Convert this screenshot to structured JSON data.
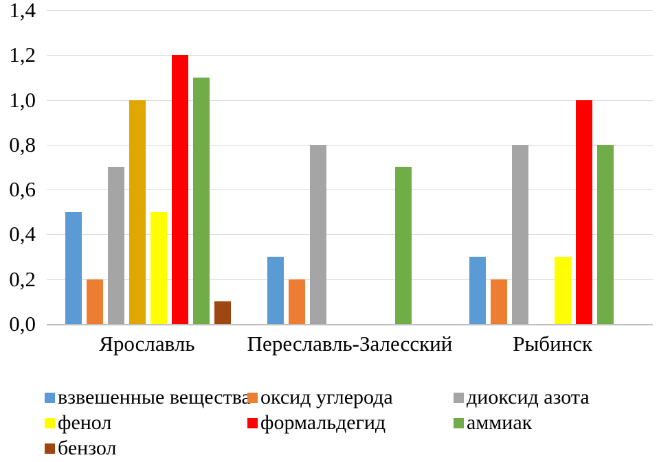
{
  "chart_data": {
    "type": "bar",
    "title": "",
    "categories": [
      "Ярославль",
      "Переславль-Залесский",
      "Рыбинск"
    ],
    "series": [
      {
        "key": "suspended-solids",
        "name": "взвешенные вещества",
        "color": "#5B9BD5",
        "values": [
          0.5,
          0.3,
          0.3
        ]
      },
      {
        "key": "carbon-monoxide",
        "name": "оксид углерода",
        "color": "#ED7D31",
        "values": [
          0.2,
          0.2,
          0.2
        ]
      },
      {
        "key": "nitrogen-dioxide",
        "name": "диоксид азота",
        "color": "#A5A5A5",
        "values": [
          0.7,
          0.8,
          0.8
        ]
      },
      {
        "key": "gold-series-unlabeled",
        "name": "",
        "color": "#DFA700",
        "values": [
          1.0,
          0,
          0
        ]
      },
      {
        "key": "phenol",
        "name": "фенол",
        "color": "#FFFF00",
        "values": [
          0.5,
          0,
          0.3
        ]
      },
      {
        "key": "formaldehyde",
        "name": "формальдегид",
        "color": "#FF0000",
        "values": [
          1.2,
          0,
          1.0
        ]
      },
      {
        "key": "ammonia",
        "name": "аммиак",
        "color": "#70AD47",
        "values": [
          1.1,
          0.7,
          0.8
        ]
      },
      {
        "key": "benzene",
        "name": "бензол",
        "color": "#9E4712",
        "values": [
          0.1,
          0,
          0
        ]
      }
    ],
    "y_ticks": [
      "1,4",
      "1,2",
      "1,0",
      "0,8",
      "0,6",
      "0,4",
      "0,2",
      "0,0"
    ],
    "ylim": [
      0,
      1.4
    ],
    "grid": true,
    "legend_position": "bottom",
    "legend": [
      {
        "key": "suspended-solids",
        "label": "взвешенные вещества",
        "color": "#5B9BD5"
      },
      {
        "key": "carbon-monoxide",
        "label": "оксид углерода",
        "color": "#ED7D31"
      },
      {
        "key": "nitrogen-dioxide",
        "label": "диоксид азота",
        "color": "#A5A5A5"
      },
      {
        "key": "phenol",
        "label": "фенол",
        "color": "#FFFF00"
      },
      {
        "key": "formaldehyde",
        "label": "формальдегид",
        "color": "#FF0000"
      },
      {
        "key": "ammonia",
        "label": "аммиак",
        "color": "#70AD47"
      },
      {
        "key": "benzene",
        "label": "бензол",
        "color": "#9E4712"
      }
    ],
    "colors": {
      "gridline": "#D9D9D9",
      "axis_line": "#BFBFBF",
      "text": "#000000",
      "background": "#FFFFFF"
    }
  }
}
